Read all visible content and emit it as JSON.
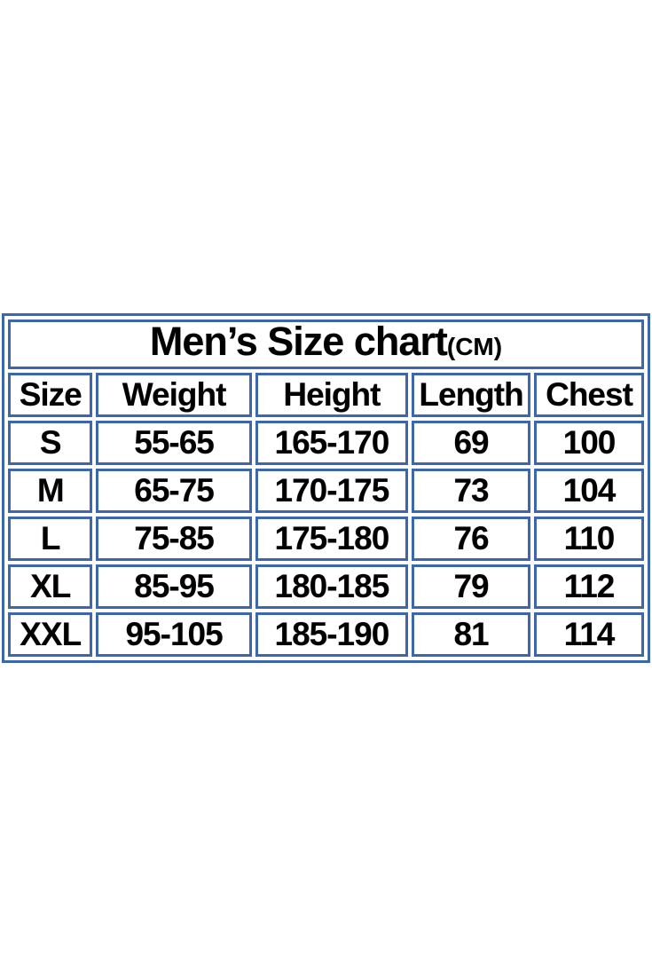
{
  "colors": {
    "border_blue": "#3d67ad",
    "text_black": "#000000",
    "background": "#ffffff"
  },
  "table": {
    "title": "Men’s Size chart",
    "title_unit": "(CM)",
    "columns": [
      "Size",
      "Weight",
      "Height",
      "Length",
      "Chest"
    ],
    "rows": [
      [
        "S",
        "55-65",
        "165-170",
        "69",
        "100"
      ],
      [
        "M",
        "65-75",
        "170-175",
        "73",
        "104"
      ],
      [
        "L",
        "75-85",
        "175-180",
        "76",
        "110"
      ],
      [
        "XL",
        "85-95",
        "180-185",
        "79",
        "112"
      ],
      [
        "XXL",
        "95-105",
        "185-190",
        "81",
        "114"
      ]
    ]
  },
  "chart_data": {
    "type": "table",
    "title": "Men's Size chart (CM)",
    "unit": "CM",
    "columns": [
      "Size",
      "Weight",
      "Height",
      "Length",
      "Chest"
    ],
    "rows": [
      {
        "size": "S",
        "weight": "55-65",
        "height": "165-170",
        "length": 69,
        "chest": 100
      },
      {
        "size": "M",
        "weight": "65-75",
        "height": "170-175",
        "length": 73,
        "chest": 104
      },
      {
        "size": "L",
        "weight": "75-85",
        "height": "175-180",
        "length": 76,
        "chest": 110
      },
      {
        "size": "XL",
        "weight": "85-95",
        "height": "180-185",
        "length": 79,
        "chest": 112
      },
      {
        "size": "XXL",
        "weight": "95-105",
        "height": "185-190",
        "length": 81,
        "chest": 114
      }
    ]
  }
}
